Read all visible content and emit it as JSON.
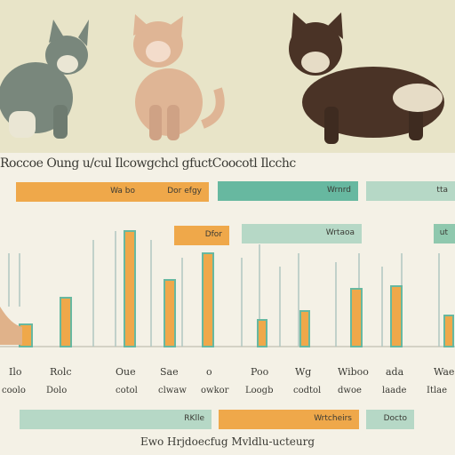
{
  "headline": "Roccoe Oung u/cul Ilcowgchcl gfuctCoocotl Ilcchc",
  "bars": {
    "row1": [
      "Wa bo",
      "Dor efgy",
      "Wrnrd",
      "tta"
    ],
    "row2": [
      "Dfor",
      "Wrtaoa",
      "ut"
    ],
    "row3": [
      "RKlle",
      "Wrtcheirs",
      "Docto"
    ]
  },
  "labels": {
    "row1": [
      "Ilo",
      "Rolc",
      "Oue",
      "Sae",
      "o",
      "Poo",
      "Wg",
      "Wiboo",
      "ada",
      "Wae"
    ],
    "row2": [
      "coolo",
      "Dolo",
      "cotol",
      "clwaw",
      "owkor",
      "Loogb",
      "codtol",
      "dwoe",
      "laade",
      "Itlae"
    ]
  },
  "footer": "Ewo   Hrjdoecfug   Mvldlu-ucteurg",
  "colors": {
    "orange": "#efa84a",
    "teal": "#67b8a0",
    "paleteal": "#b6d8c6",
    "brown": "#4a3326",
    "gray": "#79877c",
    "tan": "#dfb595"
  }
}
